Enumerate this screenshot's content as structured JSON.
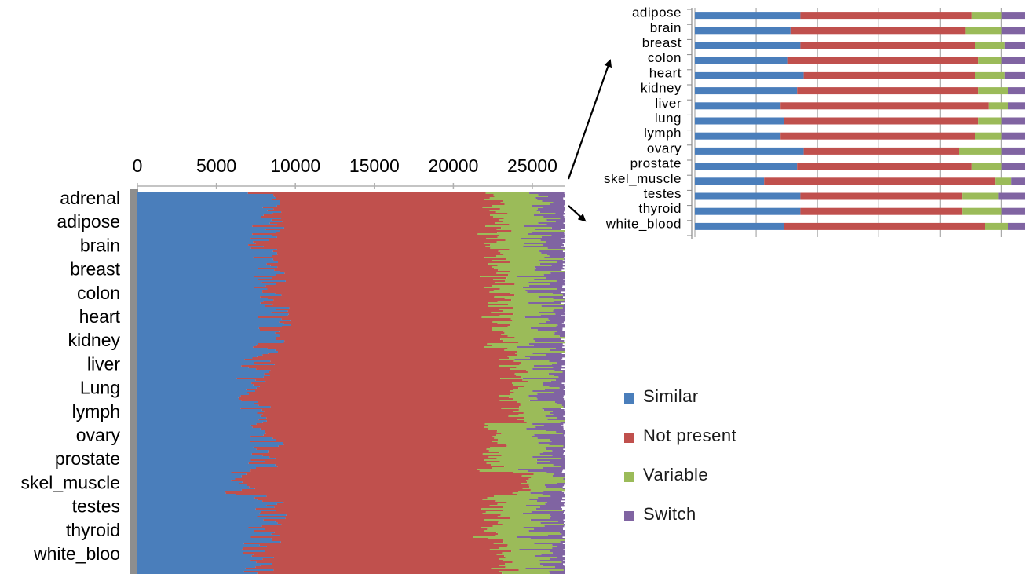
{
  "colors": {
    "similar": "#4a7ebb",
    "not_present": "#c0504d",
    "variable": "#9bbb59",
    "switch": "#8064a2",
    "baseline": "#8e8e8e"
  },
  "legend": {
    "items": [
      {
        "key": "similar",
        "label": "Similar"
      },
      {
        "key": "not_present",
        "label": "Not present"
      },
      {
        "key": "variable",
        "label": "Variable"
      },
      {
        "key": "switch",
        "label": "Switch"
      }
    ]
  },
  "chart_data": [
    {
      "type": "bar",
      "orientation": "horizontal",
      "stacked": true,
      "x_ticks": [
        "0",
        "5000",
        "10000",
        "15000",
        "20000",
        "25000"
      ],
      "xlim": [
        0,
        27000
      ],
      "categories": [
        "adrenal",
        "adipose",
        "brain",
        "breast",
        "colon",
        "heart",
        "kidney",
        "liver",
        "Lung",
        "lymph",
        "ovary",
        "prostate",
        "skel_muscle",
        "testes",
        "thyroid",
        "white_bloo"
      ],
      "series": [
        {
          "name": "Similar",
          "values": [
            8100,
            8200,
            8000,
            8300,
            8100,
            8700,
            8300,
            7600,
            7300,
            7400,
            8200,
            8000,
            6500,
            8400,
            8100,
            7700
          ]
        },
        {
          "name": "Not present",
          "values": [
            14100,
            14500,
            14600,
            14400,
            14800,
            14200,
            14800,
            16300,
            16600,
            16400,
            14500,
            14500,
            17900,
            14400,
            14200,
            15600
          ]
        },
        {
          "name": "Variable",
          "values": [
            3100,
            3000,
            3000,
            3000,
            2800,
            2900,
            2700,
            1800,
            1900,
            2000,
            3100,
            3300,
            1800,
            3100,
            3500,
            2600
          ]
        },
        {
          "name": "Switch",
          "values": [
            1700,
            1300,
            1400,
            1300,
            1300,
            1200,
            1200,
            1300,
            1200,
            1200,
            1200,
            1200,
            800,
            1100,
            1200,
            1100
          ]
        }
      ],
      "grid": false,
      "legend": "right"
    },
    {
      "type": "bar",
      "orientation": "horizontal",
      "stacked": true,
      "percent": true,
      "categories": [
        "adipose",
        "brain",
        "breast",
        "colon",
        "heart",
        "kidney",
        "liver",
        "lung",
        "lymph",
        "ovary",
        "prostate",
        "skel_muscle",
        "testes",
        "thyroid",
        "white_blood"
      ],
      "series": [
        {
          "name": "Similar",
          "values": [
            32,
            29,
            32,
            28,
            33,
            31,
            26,
            27,
            26,
            33,
            31,
            21,
            32,
            32,
            27
          ]
        },
        {
          "name": "Not present",
          "values": [
            52,
            53,
            53,
            58,
            52,
            55,
            63,
            59,
            59,
            47,
            53,
            70,
            49,
            49,
            61
          ]
        },
        {
          "name": "Variable",
          "values": [
            9,
            11,
            9,
            7,
            9,
            9,
            6,
            7,
            8,
            13,
            9,
            5,
            11,
            12,
            7
          ]
        },
        {
          "name": "Switch",
          "values": [
            7,
            7,
            6,
            7,
            6,
            5,
            5,
            7,
            7,
            7,
            7,
            4,
            8,
            7,
            5
          ]
        }
      ],
      "grid": true,
      "legend": "none"
    }
  ]
}
